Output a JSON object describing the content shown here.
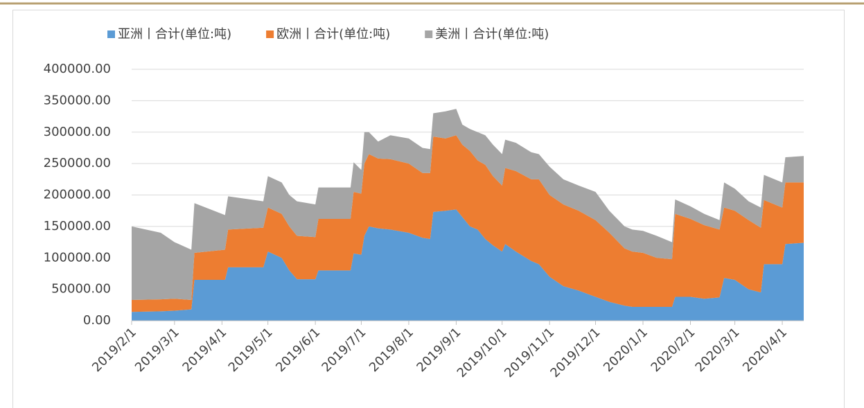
{
  "chart_data": {
    "type": "stacked_area",
    "x": [
      "2019/2/1",
      "2019/2/20",
      "2019/3/1",
      "2019/3/12",
      "2019/3/14",
      "2019/4/3",
      "2019/4/5",
      "2019/4/28",
      "2019/5/1",
      "2019/5/10",
      "2019/5/15",
      "2019/5/20",
      "2019/6/1",
      "2019/6/3",
      "2019/6/24",
      "2019/6/26",
      "2019/7/1",
      "2019/7/3",
      "2019/7/6",
      "2019/7/12",
      "2019/7/20",
      "2019/8/1",
      "2019/8/10",
      "2019/8/15",
      "2019/8/17",
      "2019/8/25",
      "2019/9/1",
      "2019/9/5",
      "2019/9/10",
      "2019/9/15",
      "2019/9/20",
      "2019/9/25",
      "2019/10/1",
      "2019/10/3",
      "2019/10/10",
      "2019/10/20",
      "2019/10/25",
      "2019/11/1",
      "2019/11/10",
      "2019/11/20",
      "2019/12/1",
      "2019/12/10",
      "2019/12/20",
      "2019/12/25",
      "2020/1/1",
      "2020/1/10",
      "2020/1/20",
      "2020/1/22",
      "2020/2/1",
      "2020/2/10",
      "2020/2/20",
      "2020/2/23",
      "2020/3/1",
      "2020/3/10",
      "2020/3/18",
      "2020/3/20",
      "2020/4/1",
      "2020/4/3",
      "2020/4/15"
    ],
    "series": [
      {
        "name": "亚洲丨合计(单位:吨)",
        "color": "#5b9bd5",
        "values": [
          14000,
          15000,
          16000,
          18000,
          65000,
          65000,
          85000,
          85000,
          110000,
          100000,
          80000,
          66000,
          66000,
          80000,
          80000,
          107000,
          105000,
          135000,
          150000,
          147000,
          145000,
          140000,
          132000,
          130000,
          173000,
          175000,
          177000,
          165000,
          150000,
          145000,
          130000,
          120000,
          110000,
          122000,
          110000,
          95000,
          90000,
          70000,
          55000,
          48000,
          38000,
          30000,
          24000,
          22000,
          22000,
          22000,
          22000,
          38000,
          38000,
          35000,
          37000,
          68000,
          65000,
          50000,
          45000,
          90000,
          90000,
          122000,
          124000
        ]
      },
      {
        "name": "欧洲丨合计(单位:吨)",
        "color": "#ed7d31",
        "values": [
          19000,
          19000,
          19000,
          15000,
          43000,
          48000,
          60000,
          63000,
          70000,
          70000,
          70000,
          69000,
          67000,
          82000,
          82000,
          98000,
          97000,
          115000,
          115000,
          111000,
          112000,
          110000,
          103000,
          105000,
          120000,
          115000,
          118000,
          115000,
          120000,
          110000,
          118000,
          110000,
          105000,
          121000,
          128000,
          130000,
          135000,
          130000,
          130000,
          127000,
          122000,
          110000,
          91000,
          88000,
          86000,
          78000,
          76000,
          132000,
          124000,
          117000,
          108000,
          112000,
          110000,
          110000,
          103000,
          102000,
          90000,
          98000,
          96000
        ]
      },
      {
        "name": "美洲丨合计(单位:吨)",
        "color": "#a5a5a5",
        "values": [
          117000,
          106000,
          90000,
          80000,
          79000,
          55000,
          53000,
          42000,
          50000,
          50000,
          50000,
          55000,
          52000,
          50000,
          50000,
          47000,
          38000,
          50000,
          35000,
          27000,
          38000,
          40000,
          40000,
          38000,
          37000,
          43000,
          42000,
          32000,
          35000,
          45000,
          47000,
          50000,
          50000,
          45000,
          45000,
          43000,
          40000,
          45000,
          40000,
          40000,
          45000,
          35000,
          35000,
          35000,
          35000,
          35000,
          27000,
          23000,
          20000,
          18000,
          15000,
          40000,
          35000,
          30000,
          32000,
          40000,
          40000,
          40000,
          42000
        ]
      }
    ],
    "xlim": [
      "2019/2/1",
      "2020/4/15"
    ],
    "xticks": [
      "2019/2/1",
      "2019/3/1",
      "2019/4/1",
      "2019/5/1",
      "2019/6/1",
      "2019/7/1",
      "2019/8/1",
      "2019/9/1",
      "2019/10/1",
      "2019/11/1",
      "2019/12/1",
      "2020/1/1",
      "2020/2/1",
      "2020/3/1",
      "2020/4/1"
    ],
    "ylim": [
      0,
      400000
    ],
    "yticks": [
      {
        "value": 0,
        "label": "0.00"
      },
      {
        "value": 50000,
        "label": "50000.00"
      },
      {
        "value": 100000,
        "label": "100000.00"
      },
      {
        "value": 150000,
        "label": "150000.00"
      },
      {
        "value": 200000,
        "label": "200000.00"
      },
      {
        "value": 250000,
        "label": "250000.00"
      },
      {
        "value": 300000,
        "label": "300000.00"
      },
      {
        "value": 350000,
        "label": "350000.00"
      },
      {
        "value": 400000,
        "label": "400000.00"
      }
    ],
    "grid": true,
    "legend": "top"
  }
}
